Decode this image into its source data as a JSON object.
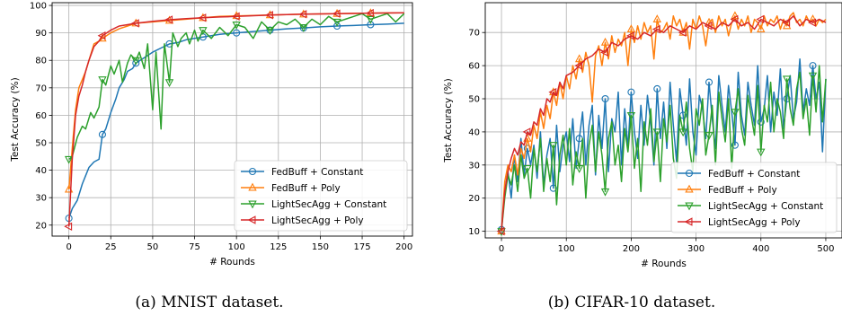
{
  "colors": {
    "FedBuff + Constant": "#1f77b4",
    "FedBuff + Poly": "#ff7f0e",
    "LightSecAgg + Constant": "#2ca02c",
    "LightSecAgg + Poly": "#d62728"
  },
  "markers": {
    "FedBuff + Constant": "circle",
    "FedBuff + Poly": "triangle-up",
    "LightSecAgg + Constant": "triangle-down",
    "LightSecAgg + Poly": "triangle-left"
  },
  "chart_data": [
    {
      "type": "line",
      "caption": "(a) MNIST dataset.",
      "xlabel": "# Rounds",
      "ylabel": "Test Accuracy (%)",
      "xlim": [
        -10,
        205
      ],
      "ylim": [
        16,
        101
      ],
      "xticks": [
        0,
        25,
        50,
        75,
        100,
        125,
        150,
        175,
        200
      ],
      "yticks": [
        20,
        30,
        40,
        50,
        60,
        70,
        80,
        90,
        100
      ],
      "grid": true,
      "legend": "lower-right",
      "marker_x": [
        0,
        20,
        40,
        60,
        80,
        100,
        120,
        140,
        160,
        180
      ],
      "series": [
        {
          "name": "FedBuff + Constant",
          "x": [
            0,
            2,
            5,
            8,
            10,
            12,
            15,
            18,
            20,
            22,
            25,
            28,
            30,
            33,
            35,
            38,
            40,
            45,
            50,
            55,
            60,
            65,
            70,
            75,
            80,
            90,
            100,
            110,
            120,
            130,
            140,
            150,
            160,
            170,
            180,
            190,
            200
          ],
          "y": [
            22.5,
            26,
            29,
            35,
            38,
            41,
            43,
            44,
            53,
            55,
            61,
            66,
            70,
            73,
            76,
            77,
            79,
            81,
            83,
            84.5,
            86,
            86.5,
            87.5,
            88,
            88.5,
            89.5,
            90,
            90.5,
            91,
            91.5,
            91.8,
            92.2,
            92.5,
            92.7,
            93,
            93.2,
            93.5
          ]
        },
        {
          "name": "FedBuff + Poly",
          "x": [
            0,
            2,
            4,
            6,
            8,
            10,
            12,
            15,
            18,
            20,
            25,
            30,
            35,
            40,
            50,
            60,
            70,
            80,
            90,
            100,
            120,
            140,
            160,
            180,
            200
          ],
          "y": [
            33,
            48,
            62,
            70,
            73,
            76,
            80,
            86,
            87,
            88,
            90,
            91.5,
            92.5,
            93.5,
            94,
            94.5,
            95,
            95.5,
            96,
            96.2,
            96.5,
            96.8,
            97,
            97.2,
            97.3
          ]
        },
        {
          "name": "LightSecAgg + Constant",
          "x": [
            0,
            2,
            5,
            8,
            10,
            13,
            15,
            18,
            20,
            22,
            25,
            27,
            30,
            32,
            35,
            37,
            40,
            42,
            45,
            47,
            50,
            52,
            55,
            57,
            60,
            62,
            65,
            67,
            70,
            72,
            75,
            77,
            80,
            85,
            90,
            95,
            100,
            105,
            110,
            115,
            120,
            125,
            130,
            135,
            140,
            145,
            150,
            155,
            160,
            165,
            170,
            175,
            180,
            185,
            190,
            195,
            200
          ],
          "y": [
            44,
            45,
            52,
            56,
            55,
            61,
            59,
            63,
            73,
            71,
            78,
            75,
            80,
            72,
            79,
            82,
            80,
            83,
            77,
            86,
            62,
            83,
            55,
            86,
            72,
            90,
            85,
            88,
            90,
            86,
            91,
            87,
            91,
            88,
            92,
            89,
            93,
            92,
            88,
            94,
            91,
            94,
            93,
            95,
            92,
            95,
            93,
            96,
            94,
            95,
            96,
            97,
            95,
            96,
            97,
            94,
            97
          ]
        },
        {
          "name": "LightSecAgg + Poly",
          "x": [
            0,
            2,
            4,
            6,
            8,
            10,
            12,
            15,
            18,
            20,
            25,
            30,
            35,
            40,
            50,
            60,
            70,
            80,
            90,
            100,
            120,
            140,
            160,
            180,
            200
          ],
          "y": [
            19.5,
            44,
            60,
            67,
            71,
            76,
            80,
            85,
            87,
            89,
            91,
            92.5,
            93,
            93.5,
            94.2,
            94.8,
            95.2,
            95.5,
            95.8,
            96,
            96.5,
            96.8,
            97,
            97.2,
            97.3
          ]
        }
      ]
    },
    {
      "type": "line",
      "caption": "(b) CIFAR-10 dataset.",
      "xlabel": "# Rounds",
      "ylabel": "Test Accuracy (%)",
      "xlim": [
        -25,
        525
      ],
      "ylim": [
        8,
        79
      ],
      "xticks": [
        0,
        100,
        200,
        300,
        400,
        500
      ],
      "yticks": [
        10,
        20,
        30,
        40,
        50,
        60,
        70
      ],
      "grid": true,
      "legend": "lower-right",
      "marker_x": [
        0,
        40,
        80,
        120,
        160,
        200,
        240,
        280,
        320,
        360,
        400,
        440,
        480
      ],
      "series": [
        {
          "name": "FedBuff + Constant",
          "x": [
            0,
            5,
            10,
            15,
            20,
            25,
            30,
            35,
            40,
            45,
            50,
            55,
            60,
            65,
            70,
            75,
            80,
            85,
            90,
            95,
            100,
            105,
            110,
            115,
            120,
            125,
            130,
            135,
            140,
            145,
            150,
            155,
            160,
            165,
            170,
            175,
            180,
            185,
            190,
            195,
            200,
            205,
            210,
            215,
            220,
            225,
            230,
            235,
            240,
            245,
            250,
            255,
            260,
            265,
            270,
            275,
            280,
            285,
            290,
            295,
            300,
            305,
            310,
            315,
            320,
            325,
            330,
            335,
            340,
            345,
            350,
            355,
            360,
            365,
            370,
            375,
            380,
            385,
            390,
            395,
            400,
            405,
            410,
            415,
            420,
            425,
            430,
            435,
            440,
            445,
            450,
            455,
            460,
            465,
            470,
            475,
            480,
            485,
            490,
            495,
            500
          ],
          "y": [
            10.5,
            22,
            28,
            20,
            33,
            25,
            38,
            27,
            35,
            30,
            36,
            26,
            40,
            24,
            33,
            38,
            23,
            42,
            28,
            36,
            40,
            31,
            44,
            29,
            38,
            46,
            30,
            42,
            48,
            27,
            45,
            35,
            50,
            28,
            44,
            40,
            52,
            30,
            47,
            35,
            52,
            40,
            32,
            48,
            36,
            51,
            43,
            30,
            53,
            38,
            49,
            35,
            55,
            42,
            31,
            53,
            45,
            36,
            56,
            40,
            33,
            51,
            47,
            38,
            55,
            44,
            35,
            57,
            48,
            40,
            54,
            46,
            36,
            58,
            45,
            39,
            55,
            48,
            42,
            60,
            43,
            47,
            57,
            40,
            52,
            45,
            59,
            41,
            50,
            57,
            44,
            49,
            62,
            46,
            53,
            48,
            60,
            50,
            55,
            34,
            56
          ]
        },
        {
          "name": "FedBuff + Poly",
          "x": [
            0,
            5,
            10,
            15,
            20,
            25,
            30,
            35,
            40,
            45,
            50,
            55,
            60,
            65,
            70,
            75,
            80,
            85,
            90,
            95,
            100,
            105,
            110,
            115,
            120,
            125,
            130,
            135,
            140,
            145,
            150,
            155,
            160,
            165,
            170,
            175,
            180,
            185,
            190,
            195,
            200,
            205,
            210,
            215,
            220,
            225,
            230,
            235,
            240,
            245,
            250,
            255,
            260,
            265,
            270,
            275,
            280,
            285,
            290,
            295,
            300,
            305,
            310,
            315,
            320,
            325,
            330,
            335,
            340,
            345,
            350,
            355,
            360,
            365,
            370,
            375,
            380,
            385,
            390,
            395,
            400,
            405,
            410,
            415,
            420,
            425,
            430,
            435,
            440,
            445,
            450,
            455,
            460,
            465,
            470,
            475,
            480,
            485,
            490,
            495,
            500
          ],
          "y": [
            10,
            25,
            30,
            28,
            33,
            27,
            35,
            32,
            38,
            34,
            42,
            38,
            46,
            41,
            48,
            44,
            52,
            48,
            55,
            50,
            57,
            53,
            60,
            56,
            62,
            58,
            64,
            60,
            49,
            63,
            66,
            60,
            67,
            62,
            69,
            64,
            68,
            66,
            70,
            60,
            71,
            67,
            72,
            68,
            73,
            70,
            72,
            62,
            74,
            70,
            71,
            73,
            68,
            75,
            72,
            74,
            70,
            73,
            65,
            74,
            71,
            75,
            72,
            66,
            73,
            74,
            70,
            75,
            72,
            74,
            69,
            73,
            75,
            71,
            74,
            72,
            75,
            70,
            74,
            73,
            71,
            75,
            72,
            74,
            73,
            75,
            71,
            74,
            72,
            75,
            76,
            73,
            74,
            72,
            75,
            73,
            74,
            72,
            74,
            73,
            74
          ]
        },
        {
          "name": "LightSecAgg + Constant",
          "x": [
            0,
            5,
            10,
            15,
            20,
            25,
            30,
            35,
            40,
            45,
            50,
            55,
            60,
            65,
            70,
            75,
            80,
            85,
            90,
            95,
            100,
            105,
            110,
            115,
            120,
            125,
            130,
            135,
            140,
            145,
            150,
            155,
            160,
            165,
            170,
            175,
            180,
            185,
            190,
            195,
            200,
            205,
            210,
            215,
            220,
            225,
            230,
            235,
            240,
            245,
            250,
            255,
            260,
            265,
            270,
            275,
            280,
            285,
            290,
            295,
            300,
            305,
            310,
            315,
            320,
            325,
            330,
            335,
            340,
            345,
            350,
            355,
            360,
            365,
            370,
            375,
            380,
            385,
            390,
            395,
            400,
            405,
            410,
            415,
            420,
            425,
            430,
            435,
            440,
            445,
            450,
            455,
            460,
            465,
            470,
            475,
            480,
            485,
            490,
            495,
            500
          ],
          "y": [
            10,
            20,
            27,
            24,
            30,
            22,
            33,
            26,
            29,
            20,
            35,
            28,
            38,
            22,
            32,
            25,
            36,
            18,
            33,
            39,
            30,
            41,
            24,
            34,
            29,
            38,
            20,
            36,
            42,
            28,
            40,
            33,
            22,
            38,
            43,
            30,
            36,
            25,
            41,
            34,
            45,
            29,
            38,
            22,
            43,
            36,
            47,
            31,
            40,
            25,
            44,
            37,
            48,
            32,
            26,
            45,
            40,
            49,
            35,
            28,
            47,
            42,
            50,
            33,
            39,
            48,
            30,
            52,
            44,
            37,
            50,
            29,
            46,
            53,
            41,
            36,
            51,
            45,
            39,
            54,
            34,
            48,
            43,
            55,
            40,
            50,
            46,
            38,
            56,
            47,
            42,
            53,
            58,
            44,
            50,
            39,
            57,
            46,
            60,
            43,
            56
          ]
        },
        {
          "name": "LightSecAgg + Poly",
          "x": [
            0,
            5,
            10,
            15,
            20,
            25,
            30,
            35,
            40,
            45,
            50,
            55,
            60,
            65,
            70,
            75,
            80,
            85,
            90,
            95,
            100,
            110,
            120,
            130,
            140,
            150,
            160,
            170,
            180,
            190,
            200,
            210,
            220,
            230,
            240,
            250,
            260,
            270,
            280,
            290,
            300,
            310,
            320,
            330,
            340,
            350,
            360,
            370,
            380,
            390,
            400,
            410,
            420,
            430,
            440,
            450,
            460,
            470,
            480,
            490,
            500
          ],
          "y": [
            10,
            22,
            28,
            32,
            35,
            33,
            37,
            36,
            40,
            39,
            43,
            42,
            47,
            45,
            50,
            49,
            52,
            51,
            55,
            53,
            57,
            58,
            60,
            62,
            63,
            65,
            64,
            67,
            66,
            68,
            69,
            68,
            70,
            69,
            71,
            70,
            72,
            71,
            70,
            72,
            71,
            73,
            72,
            71,
            73,
            72,
            74,
            72,
            73,
            71,
            74,
            73,
            72,
            74,
            73,
            75,
            72,
            74,
            73,
            74,
            73
          ]
        }
      ]
    }
  ]
}
